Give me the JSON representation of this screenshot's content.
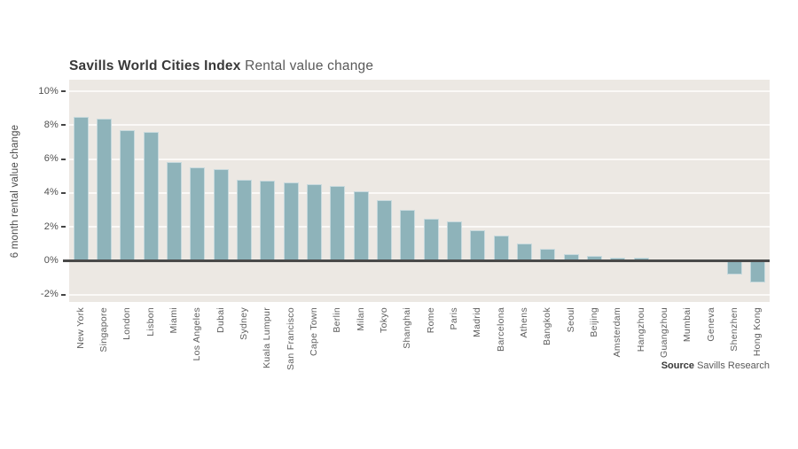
{
  "header": {
    "title_bold": "Savills World Cities Index",
    "title_regular": "Rental value change"
  },
  "chart_data": {
    "type": "bar",
    "title": "Savills World Cities Index Rental value change",
    "ylabel": "6 month rental value change",
    "categories": [
      "New York",
      "Singapore",
      "London",
      "Lisbon",
      "Miami",
      "Los Angeles",
      "Dubai",
      "Sydney",
      "Kuala Lumpur",
      "San Francisco",
      "Cape Town",
      "Berlin",
      "Milan",
      "Tokyo",
      "Shanghai",
      "Rome",
      "Paris",
      "Madrid",
      "Barcelona",
      "Athens",
      "Bangkok",
      "Seoul",
      "Beijing",
      "Amsterdam",
      "Hangzhou",
      "Guangzhou",
      "Mumbai",
      "Geneva",
      "Shenzhen",
      "Hong Kong"
    ],
    "values": [
      8.5,
      8.4,
      7.7,
      7.6,
      5.8,
      5.5,
      5.4,
      4.8,
      4.7,
      4.6,
      4.5,
      4.4,
      4.1,
      3.6,
      3.0,
      2.5,
      2.3,
      1.8,
      1.5,
      1.0,
      0.7,
      0.4,
      0.3,
      0.2,
      0.2,
      0.1,
      0.0,
      0.0,
      -0.8,
      -1.3
    ],
    "yticks": [
      {
        "label": "10%",
        "v": 10
      },
      {
        "label": "8%",
        "v": 8
      },
      {
        "label": "6%",
        "v": 6
      },
      {
        "label": "4%",
        "v": 4
      },
      {
        "label": "2%",
        "v": 2
      },
      {
        "label": "0%",
        "v": 0
      },
      {
        "label": "-2%",
        "v": -2
      }
    ],
    "ylim": [
      -2.45,
      10.65
    ],
    "grid": true,
    "legend": "none",
    "plot_bg": "#ece8e3",
    "bar_color": "#8eb3ba",
    "grid_color": "#fbf9f7",
    "zero_line_color": "#4a4a4a"
  },
  "footer": {
    "source_label": "Source",
    "source_text": "Savills Research"
  }
}
